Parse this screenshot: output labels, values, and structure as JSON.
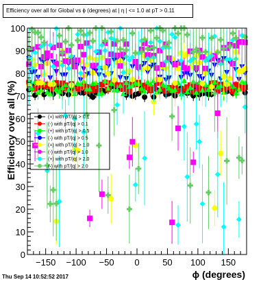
{
  "chart_data": {
    "type": "scatter",
    "title": "Efficiency over all for Global vs ϕ (degrees) at | η | <= 1.0 at pT > 0.11",
    "xlabel": "ϕ (degrees)",
    "ylabel": "Efficiency over all (%)",
    "xlim": [
      -180,
      180
    ],
    "ylim": [
      0,
      100
    ],
    "x_ticks": [
      -150,
      -100,
      -50,
      0,
      50,
      100,
      150
    ],
    "x_tick_labels": [
      "−150",
      "−100",
      "−50",
      "0",
      "50",
      "100",
      "150"
    ],
    "y_ticks": [
      0,
      10,
      20,
      30,
      40,
      50,
      60,
      70,
      80,
      90,
      100
    ],
    "grid": false,
    "legend_placement": "middle-left",
    "series": [
      {
        "name": "(+) with pT/|q| > 0.1",
        "color": "#000000",
        "marker": "circle",
        "y_center": 72,
        "y_spread": 2.5,
        "err": 2,
        "outlier_rate": 0
      },
      {
        "name": "(-) with pT/|q| > 0.1",
        "color": "#ff0000",
        "marker": "square",
        "y_center": 74,
        "y_spread": 2,
        "err": 2,
        "outlier_rate": 0
      },
      {
        "name": "(+) with pT/|q| > 0.5",
        "color": "#00ff00",
        "marker": "triangle",
        "y_center": 74,
        "y_spread": 3,
        "err": 3,
        "outlier_rate": 0
      },
      {
        "name": "(-) with pT/|q| > 0.5",
        "color": "#0000ff",
        "marker": "triangle-down",
        "y_center": 82,
        "y_spread": 5,
        "err": 3,
        "outlier_rate": 0
      },
      {
        "name": "(+) with pT/|q| > 1.0",
        "color": "#ffff00",
        "marker": "circle-open",
        "y_center": 82,
        "y_spread": 8,
        "err": 8,
        "outlier_rate": 0.15
      },
      {
        "name": "(-) with pT/|q| > 1.0",
        "color": "#ff00ff",
        "marker": "square-open",
        "y_center": 88,
        "y_spread": 6,
        "err": 8,
        "outlier_rate": 0.1
      },
      {
        "name": "(+) with pT/|q| > 2.0",
        "color": "#00ffff",
        "marker": "diamond",
        "y_center": 90,
        "y_spread": 10,
        "err": 15,
        "outlier_rate": 0.25
      },
      {
        "name": "(-) with pT/|q| > 2.0",
        "color": "#66cc66",
        "marker": "cross",
        "y_center": 95,
        "y_spread": 6,
        "err": 15,
        "outlier_rate": 0.25
      }
    ]
  },
  "footer": {
    "date": "Thu Sep 14 10:52:52 2017"
  }
}
